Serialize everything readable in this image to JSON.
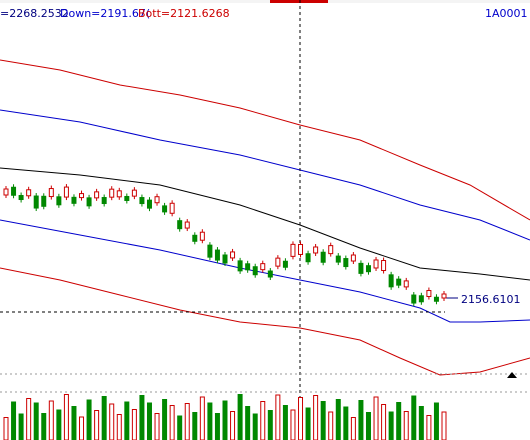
{
  "header": {
    "up_text": "=2268.2532",
    "down_text": "Down=2191.67(",
    "bott_text": "Bott=2121.6268",
    "symbol": "1A0001"
  },
  "price_label": "2156.6101",
  "colors": {
    "up_candle": "#cc0000",
    "down_candle": "#008800",
    "upper_band": "#cc0000",
    "mid_band": "#0000cc",
    "center_line": "#000000",
    "header_blue": "#0000cc",
    "header_red": "#cc0000"
  },
  "chart_data": {
    "type": "candlestick",
    "symbol": "1A0001",
    "bands": {
      "up": 2268.2532,
      "down": 2191.67,
      "bott": 2121.6268
    },
    "last_price": 2156.6101,
    "candles": [
      {
        "o": 0,
        "c": -3,
        "d": "up"
      },
      {
        "o": 0,
        "c": -4,
        "d": "down"
      },
      {
        "o": 0,
        "c": 2,
        "d": "down"
      },
      {
        "o": 0,
        "c": -3,
        "d": "up"
      },
      {
        "o": 0,
        "c": 6,
        "d": "down"
      },
      {
        "o": 0,
        "c": 5,
        "d": "down"
      },
      {
        "o": 0,
        "c": -4,
        "d": "up"
      },
      {
        "o": 0,
        "c": 4,
        "d": "down"
      },
      {
        "o": 0,
        "c": -5,
        "d": "up"
      },
      {
        "o": 0,
        "c": 3,
        "d": "down"
      },
      {
        "o": 0,
        "c": -2,
        "d": "up"
      },
      {
        "o": 0,
        "c": 4,
        "d": "down"
      },
      {
        "o": 0,
        "c": -3,
        "d": "up"
      },
      {
        "o": 0,
        "c": 3,
        "d": "down"
      },
      {
        "o": 0,
        "c": -4,
        "d": "up"
      },
      {
        "o": 0,
        "c": -3,
        "d": "up"
      },
      {
        "o": 0,
        "c": 2,
        "d": "down"
      },
      {
        "o": 0,
        "c": -3,
        "d": "up"
      },
      {
        "o": 0,
        "c": 3,
        "d": "down"
      },
      {
        "o": 0,
        "c": 4,
        "d": "down"
      },
      {
        "o": 0,
        "c": -3,
        "d": "up"
      },
      {
        "o": 0,
        "c": 3,
        "d": "down"
      },
      {
        "o": 0,
        "c": -5,
        "d": "up"
      },
      {
        "o": 0,
        "c": 4,
        "d": "down"
      },
      {
        "o": 0,
        "c": -3,
        "d": "up"
      },
      {
        "o": 0,
        "c": 3,
        "d": "down"
      },
      {
        "o": 0,
        "c": -4,
        "d": "up"
      },
      {
        "o": 0,
        "c": 6,
        "d": "down"
      },
      {
        "o": 0,
        "c": 5,
        "d": "down"
      },
      {
        "o": 0,
        "c": 4,
        "d": "down"
      },
      {
        "o": 0,
        "c": -3,
        "d": "up"
      },
      {
        "o": 0,
        "c": 5,
        "d": "down"
      },
      {
        "o": 0,
        "c": 3,
        "d": "down"
      },
      {
        "o": 0,
        "c": 4,
        "d": "down"
      },
      {
        "o": 0,
        "c": -3,
        "d": "up"
      },
      {
        "o": 0,
        "c": 3,
        "d": "down"
      },
      {
        "o": 0,
        "c": -4,
        "d": "up"
      },
      {
        "o": 0,
        "c": 3,
        "d": "down"
      },
      {
        "o": 0,
        "c": -6,
        "d": "up"
      },
      {
        "o": 0,
        "c": -5,
        "d": "up"
      },
      {
        "o": 0,
        "c": 4,
        "d": "down"
      },
      {
        "o": 0,
        "c": -3,
        "d": "up"
      },
      {
        "o": 0,
        "c": 5,
        "d": "down"
      },
      {
        "o": 0,
        "c": -4,
        "d": "up"
      },
      {
        "o": 0,
        "c": 3,
        "d": "down"
      },
      {
        "o": 0,
        "c": 4,
        "d": "down"
      },
      {
        "o": 0,
        "c": -3,
        "d": "up"
      },
      {
        "o": 0,
        "c": 5,
        "d": "down"
      },
      {
        "o": 0,
        "c": 3,
        "d": "down"
      },
      {
        "o": 0,
        "c": -4,
        "d": "up"
      },
      {
        "o": 0,
        "c": -5,
        "d": "up"
      },
      {
        "o": 0,
        "c": 6,
        "d": "down"
      },
      {
        "o": 0,
        "c": 3,
        "d": "down"
      },
      {
        "o": 0,
        "c": -3,
        "d": "up"
      },
      {
        "o": 0,
        "c": 4,
        "d": "down"
      },
      {
        "o": 0,
        "c": 3,
        "d": "down"
      },
      {
        "o": 0,
        "c": -3,
        "d": "up"
      },
      {
        "o": 0,
        "c": 2,
        "d": "down"
      },
      {
        "o": 0,
        "c": -2,
        "d": "up"
      }
    ]
  }
}
